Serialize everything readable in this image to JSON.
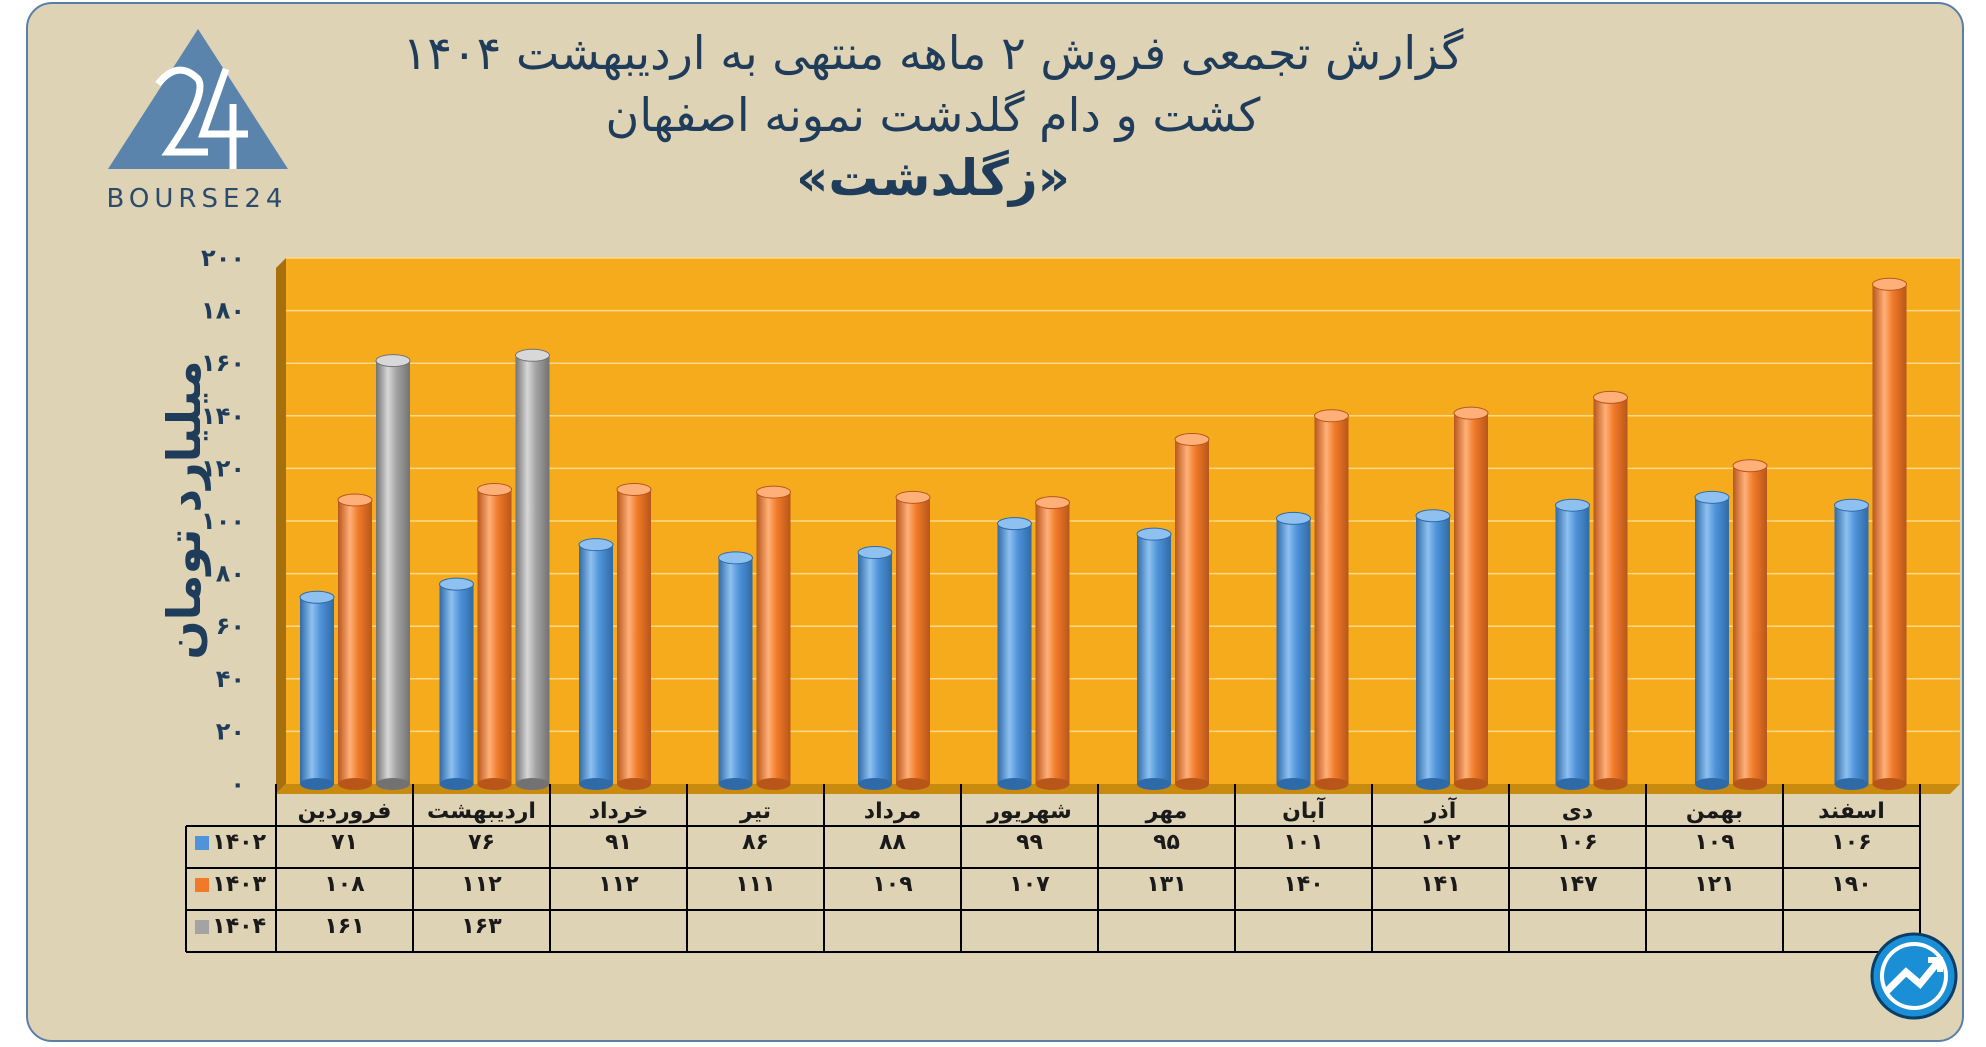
{
  "header": {
    "title_line1": "گزارش تجمعی فروش ۲ ماهه منتهی به اردیبهشت ۱۴۰۴",
    "title_line2": "کشت و دام گلدشت نمونه اصفهان",
    "title_line3": "«زگلدشت»",
    "logo_text": "BOURSE24"
  },
  "colors": {
    "series_1402": "#4f93d9",
    "series_1403": "#f07a28",
    "series_1404": "#a3a3a3",
    "plot_background": "#f5ab1b",
    "card_background": "#dfd3b6",
    "title_color": "#1f3d5a"
  },
  "chart_data": {
    "type": "bar",
    "categories": [
      "فروردین",
      "اردیبهشت",
      "خرداد",
      "تیر",
      "مرداد",
      "شهریور",
      "مهر",
      "آبان",
      "آذر",
      "دی",
      "بهمن",
      "اسفند"
    ],
    "series": [
      {
        "name": "۱۴۰۲",
        "values": [
          71,
          76,
          91,
          86,
          88,
          99,
          95,
          101,
          102,
          106,
          109,
          106
        ],
        "labels": [
          "۷۱",
          "۷۶",
          "۹۱",
          "۸۶",
          "۸۸",
          "۹۹",
          "۹۵",
          "۱۰۱",
          "۱۰۲",
          "۱۰۶",
          "۱۰۹",
          "۱۰۶"
        ]
      },
      {
        "name": "۱۴۰۳",
        "values": [
          108,
          112,
          112,
          111,
          109,
          107,
          131,
          140,
          141,
          147,
          121,
          190
        ],
        "labels": [
          "۱۰۸",
          "۱۱۲",
          "۱۱۲",
          "۱۱۱",
          "۱۰۹",
          "۱۰۷",
          "۱۳۱",
          "۱۴۰",
          "۱۴۱",
          "۱۴۷",
          "۱۲۱",
          "۱۹۰"
        ]
      },
      {
        "name": "۱۴۰۴",
        "values": [
          161,
          163,
          null,
          null,
          null,
          null,
          null,
          null,
          null,
          null,
          null,
          null
        ],
        "labels": [
          "۱۶۱",
          "۱۶۳",
          "",
          "",
          "",
          "",
          "",
          "",
          "",
          "",
          "",
          ""
        ]
      }
    ],
    "ylabel": "میلیارد تومان",
    "ylim": [
      0,
      200
    ],
    "yticks": [
      0,
      20,
      40,
      60,
      80,
      100,
      120,
      140,
      160,
      180,
      200
    ],
    "ytick_labels": [
      "۰",
      "۲۰",
      "۴۰",
      "۶۰",
      "۸۰",
      "۱۰۰",
      "۱۲۰",
      "۱۴۰",
      "۱۶۰",
      "۱۸۰",
      "۲۰۰"
    ],
    "grid": true,
    "legend": "data-table"
  }
}
